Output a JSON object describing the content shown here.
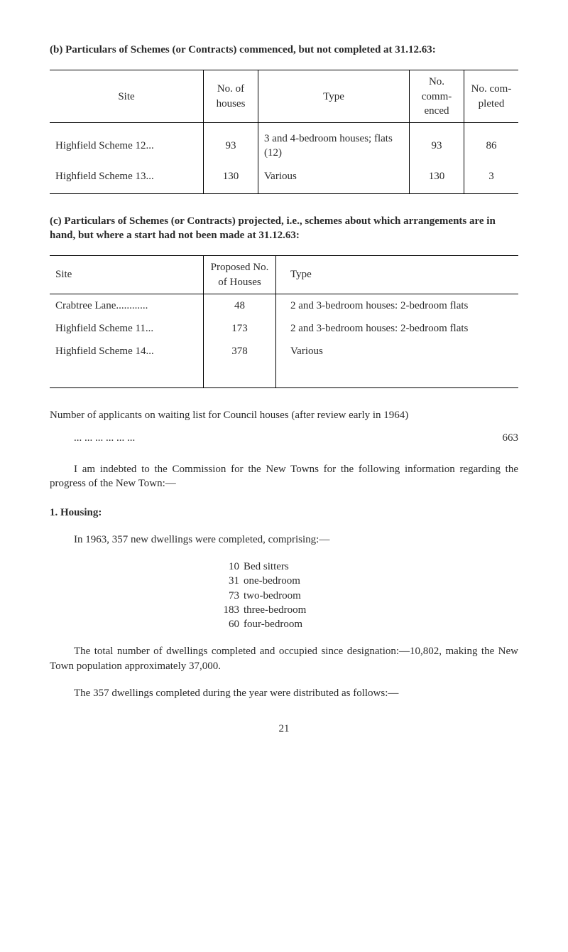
{
  "section_b": {
    "label": "(b)",
    "heading": "Particulars of Schemes (or Contracts) commenced, but not completed at 31.12.63:"
  },
  "table1": {
    "headers": {
      "site": "Site",
      "houses": "No. of houses",
      "type": "Type",
      "commenced": "No. comm-enced",
      "completed": "No. com-pleted"
    },
    "rows": [
      {
        "site": "Highfield Scheme 12...",
        "houses": "93",
        "type": "3 and 4-bedroom houses; flats (12)",
        "commenced": "93",
        "completed": "86"
      },
      {
        "site": "Highfield Scheme 13...",
        "houses": "130",
        "type": "Various",
        "commenced": "130",
        "completed": "3"
      }
    ]
  },
  "section_c": {
    "label": "(c)",
    "heading": "Particulars of Schemes (or Contracts) projected, i.e., schemes about which arrangements are in hand, but where a start had not been made at 31.12.63:"
  },
  "table2": {
    "headers": {
      "site": "Site",
      "proposed": "Proposed No. of Houses",
      "type": "Type"
    },
    "rows": [
      {
        "site": "Crabtree Lane............",
        "proposed": "48",
        "type": "2 and 3-bedroom houses: 2-bedroom flats"
      },
      {
        "site": "Highfield Scheme  11...",
        "proposed": "173",
        "type": "2 and 3-bedroom houses: 2-bedroom flats"
      },
      {
        "site": "Highfield Scheme  14...",
        "proposed": "378",
        "type": "Various"
      }
    ]
  },
  "waiting": {
    "text": "Number of applicants on waiting list for Council houses (after review early in 1964)",
    "dots": "...   ...   ...   ...   ...   ...",
    "value": "663"
  },
  "commission_para": "I am indebted to the Commission for the New Towns for the following information regarding the progress of the New Town:—",
  "housing": {
    "num": "1.",
    "title": "Housing:",
    "intro": "In 1963, 357 new dwellings were completed, comprising:—",
    "items": [
      {
        "n": "10",
        "t": "Bed sitters"
      },
      {
        "n": "31",
        "t": "one-bedroom"
      },
      {
        "n": "73",
        "t": "two-bedroom"
      },
      {
        "n": "183",
        "t": "three-bedroom"
      },
      {
        "n": "60",
        "t": "four-bedroom"
      }
    ]
  },
  "total_para": "The total number of dwellings completed and occupied since designation:—10,802, making the New Town population approximately 37,000.",
  "dist_para": "The 357 dwellings completed during the year were distributed as follows:—",
  "page_number": "21"
}
